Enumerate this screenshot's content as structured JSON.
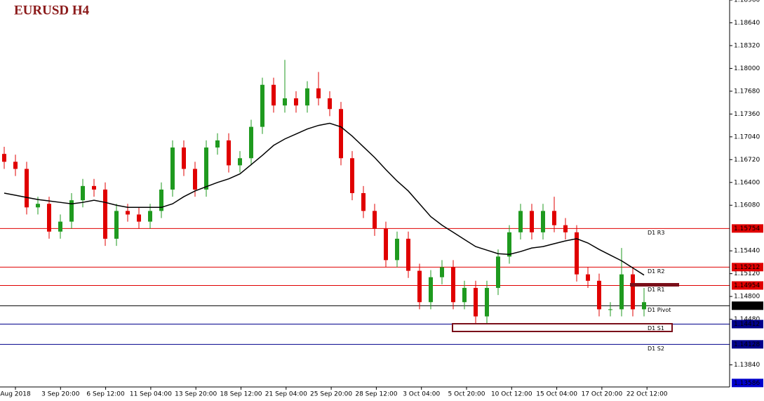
{
  "chart_data": {
    "type": "candlestick",
    "title": "EURUSD H4",
    "ylim": [
      1.1353,
      1.1896
    ],
    "yticks": [
      {
        "value": 1.1896,
        "label": "1.18960"
      },
      {
        "value": 1.1864,
        "label": "1.18640"
      },
      {
        "value": 1.1832,
        "label": "1.18320"
      },
      {
        "value": 1.18,
        "label": "1.18000"
      },
      {
        "value": 1.1768,
        "label": "1.17680"
      },
      {
        "value": 1.1736,
        "label": "1.17360"
      },
      {
        "value": 1.1704,
        "label": "1.17040"
      },
      {
        "value": 1.1672,
        "label": "1.16720"
      },
      {
        "value": 1.164,
        "label": "1.16400"
      },
      {
        "value": 1.1608,
        "label": "1.16080"
      },
      {
        "value": 1.1544,
        "label": "1.15440"
      },
      {
        "value": 1.1512,
        "label": "1.15120"
      },
      {
        "value": 1.148,
        "label": "1.14800"
      },
      {
        "value": 1.1448,
        "label": "1.14480"
      },
      {
        "value": 1.1384,
        "label": "1.13840"
      }
    ],
    "x_labels": [
      "Aug 2018",
      "3 Sep 20:00",
      "6 Sep 12:00",
      "11 Sep 04:00",
      "13 Sep 20:00",
      "18 Sep 12:00",
      "21 Sep 04:00",
      "25 Sep 20:00",
      "28 Sep 12:00",
      "3 Oct 04:00",
      "5 Oct 20:00",
      "10 Oct 12:00",
      "15 Oct 04:00",
      "17 Oct 20:00",
      "22 Oct 12:00"
    ],
    "up_color": "#1f9a1f",
    "down_color": "#e00000",
    "open": [
      1.168,
      1.1669,
      1.1659,
      1.1605,
      1.161,
      1.1571,
      1.1585,
      1.1615,
      1.1635,
      1.163,
      1.1561,
      1.16,
      1.1595,
      1.1585,
      1.16,
      1.163,
      1.1689,
      1.1659,
      1.163,
      1.1689,
      1.1699,
      1.1664,
      1.1674,
      1.1718,
      1.1777,
      1.1748,
      1.1758,
      1.1748,
      1.1772,
      1.1758,
      1.1743,
      1.1674,
      1.1625,
      1.16,
      1.1575,
      1.1531,
      1.1561,
      1.1516,
      1.1472,
      1.1507,
      1.1521,
      1.1472,
      1.1492,
      1.1452,
      1.1492,
      1.1536,
      1.157,
      1.16,
      1.157,
      1.16,
      1.158,
      1.157,
      1.1511,
      1.1502,
      1.1462,
      1.1462,
      1.1511,
      1.1462
    ],
    "high": [
      1.169,
      1.1679,
      1.1669,
      1.162,
      1.162,
      1.1595,
      1.1625,
      1.1645,
      1.1645,
      1.164,
      1.161,
      1.161,
      1.1605,
      1.161,
      1.164,
      1.1699,
      1.1699,
      1.1669,
      1.1699,
      1.1709,
      1.1709,
      1.1684,
      1.1728,
      1.1787,
      1.1787,
      1.1812,
      1.1768,
      1.1782,
      1.1795,
      1.1768,
      1.1753,
      1.1684,
      1.1635,
      1.161,
      1.1585,
      1.1571,
      1.1571,
      1.1526,
      1.1517,
      1.1531,
      1.1531,
      1.1502,
      1.1502,
      1.1502,
      1.1546,
      1.158,
      1.161,
      1.161,
      1.161,
      1.162,
      1.159,
      1.158,
      1.1521,
      1.1512,
      1.1472,
      1.1548,
      1.1521,
      1.1492
    ],
    "low": [
      1.1659,
      1.1649,
      1.1595,
      1.1595,
      1.1561,
      1.1561,
      1.1575,
      1.1605,
      1.162,
      1.1551,
      1.1551,
      1.1585,
      1.1575,
      1.1575,
      1.159,
      1.162,
      1.1649,
      1.162,
      1.162,
      1.1679,
      1.1654,
      1.1654,
      1.1664,
      1.1708,
      1.1738,
      1.1738,
      1.1738,
      1.1738,
      1.1748,
      1.1733,
      1.1664,
      1.1615,
      1.159,
      1.1565,
      1.1521,
      1.1521,
      1.1506,
      1.1462,
      1.1462,
      1.1497,
      1.1462,
      1.1462,
      1.1442,
      1.1442,
      1.1482,
      1.1526,
      1.156,
      1.156,
      1.156,
      1.157,
      1.156,
      1.1501,
      1.1492,
      1.1452,
      1.1452,
      1.1452,
      1.1452,
      1.1452
    ],
    "close": [
      1.1669,
      1.1659,
      1.1605,
      1.161,
      1.1571,
      1.1585,
      1.1615,
      1.1635,
      1.163,
      1.1561,
      1.16,
      1.1595,
      1.1585,
      1.16,
      1.163,
      1.1689,
      1.1659,
      1.163,
      1.1689,
      1.1699,
      1.1664,
      1.1674,
      1.1718,
      1.1777,
      1.1748,
      1.1758,
      1.1748,
      1.1772,
      1.1758,
      1.1743,
      1.1674,
      1.1625,
      1.16,
      1.1575,
      1.1531,
      1.1561,
      1.1516,
      1.1472,
      1.1507,
      1.1521,
      1.1472,
      1.1492,
      1.1452,
      1.1492,
      1.1536,
      1.157,
      1.16,
      1.157,
      1.16,
      1.158,
      1.157,
      1.1511,
      1.1502,
      1.1462,
      1.1462,
      1.1511,
      1.1462,
      1.1472
    ],
    "ma": {
      "color": "#000000",
      "values": [
        1.1625,
        1.1622,
        1.1619,
        1.1616,
        1.1614,
        1.1612,
        1.161,
        1.1612,
        1.1615,
        1.1612,
        1.1608,
        1.1605,
        1.1605,
        1.1605,
        1.1605,
        1.161,
        1.162,
        1.1628,
        1.1634,
        1.164,
        1.1645,
        1.1652,
        1.1665,
        1.1678,
        1.1692,
        1.1701,
        1.1708,
        1.1715,
        1.172,
        1.1723,
        1.1718,
        1.1705,
        1.169,
        1.1675,
        1.1658,
        1.1642,
        1.1628,
        1.161,
        1.1592,
        1.158,
        1.157,
        1.156,
        1.155,
        1.1545,
        1.154,
        1.1539,
        1.1543,
        1.1548,
        1.155,
        1.1554,
        1.1558,
        1.1561,
        1.1555,
        1.1546,
        1.1538,
        1.153,
        1.152,
        1.151
      ]
    },
    "levels": [
      {
        "name": "D1 R3",
        "value": 1.15754,
        "color": "#e00000"
      },
      {
        "name": "D1 R2",
        "value": 1.15212,
        "color": "#e00000"
      },
      {
        "name": "D1 R1",
        "value": 1.14954,
        "color": "#e00000"
      },
      {
        "name": "D1 Pivot",
        "value": 1.1467,
        "color": "#000000"
      },
      {
        "name": "D1 S1",
        "value": 1.14412,
        "color": "#00008b"
      },
      {
        "name": "D1 S2",
        "value": 1.14128,
        "color": "#00008b"
      }
    ],
    "price_marker": {
      "value": 1.13586,
      "color": "#0000cd"
    }
  }
}
